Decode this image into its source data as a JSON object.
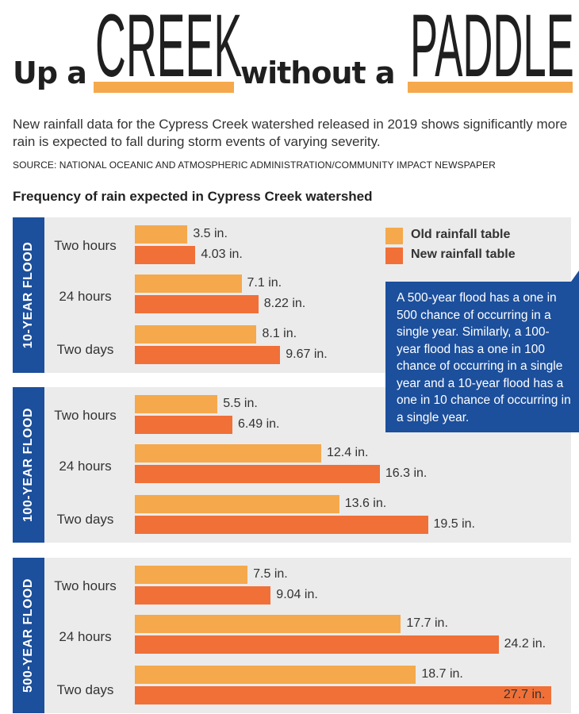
{
  "headline": {
    "part1": "Up a",
    "part2": "CREEK",
    "part3": "without a",
    "part4": "PADDLE"
  },
  "deck": "New rainfall data for the Cypress Creek watershed released in 2019 shows significantly more rain is expected to fall during storm events of varying severity.",
  "source": "SOURCE: NATIONAL OCEANIC AND ATMOSPHERIC ADMINISTRATION/COMMUNITY IMPACT NEWSPAPER",
  "callout": "A 500-year flood has a one in 500 chance of occurring in a single year. Similarly, a 100-year flood has a one in 100 chance of occurring in a single year and a 10-year flood has a one in 10 chance of occurring in a single year.",
  "colors": {
    "old": "#f5a94c",
    "new": "#f07038",
    "panel_side": "#1c4f9c",
    "panel_bg": "#ebebeb"
  },
  "chart_data": {
    "type": "bar",
    "title": "Frequency of rain expected in Cypress Creek watershed",
    "orientation": "horizontal",
    "unit": "in.",
    "legend": [
      {
        "key": "old",
        "label": "Old rainfall table",
        "color": "#f5a94c"
      },
      {
        "key": "new",
        "label": "New rainfall table",
        "color": "#f07038"
      }
    ],
    "legend_placement": "top-right",
    "groups": [
      {
        "name": "10-YEAR FLOOD",
        "rows": [
          {
            "label": "Two hours",
            "old": 3.5,
            "old_text": "3.5 in.",
            "new": 4.03,
            "new_text": "4.03 in."
          },
          {
            "label": "24 hours",
            "old": 7.1,
            "old_text": "7.1 in.",
            "new": 8.22,
            "new_text": "8.22 in."
          },
          {
            "label": "Two days",
            "old": 8.1,
            "old_text": "8.1 in.",
            "new": 9.67,
            "new_text": "9.67 in."
          }
        ]
      },
      {
        "name": "100-YEAR FLOOD",
        "rows": [
          {
            "label": "Two hours",
            "old": 5.5,
            "old_text": "5.5 in.",
            "new": 6.49,
            "new_text": "6.49 in."
          },
          {
            "label": "24 hours",
            "old": 12.4,
            "old_text": "12.4 in.",
            "new": 16.3,
            "new_text": "16.3 in."
          },
          {
            "label": "Two days",
            "old": 13.6,
            "old_text": "13.6 in.",
            "new": 19.5,
            "new_text": "19.5 in."
          }
        ]
      },
      {
        "name": "500-YEAR FLOOD",
        "rows": [
          {
            "label": "Two hours",
            "old": 7.5,
            "old_text": "7.5 in.",
            "new": 9.04,
            "new_text": "9.04 in."
          },
          {
            "label": "24 hours",
            "old": 17.7,
            "old_text": "17.7 in.",
            "new": 24.2,
            "new_text": "24.2 in."
          },
          {
            "label": "Two days",
            "old": 18.7,
            "old_text": "18.7 in.",
            "new": 27.7,
            "new_text": "27.7 in."
          }
        ]
      }
    ]
  }
}
